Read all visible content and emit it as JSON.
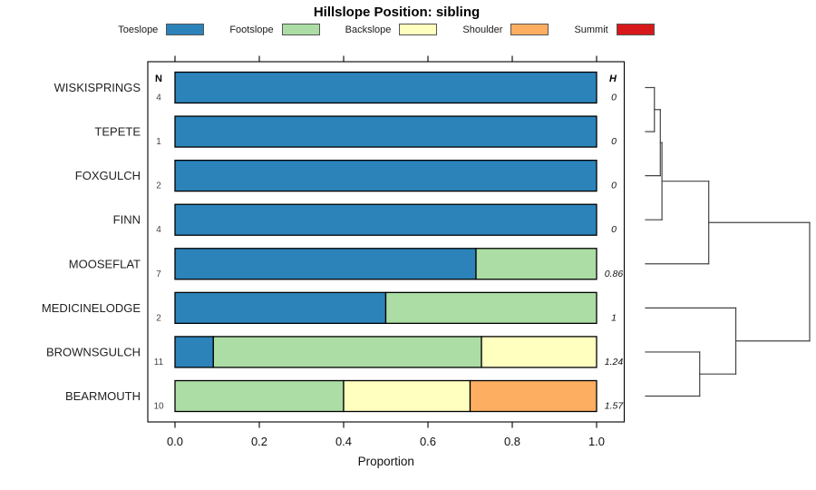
{
  "title": "Hillslope Position: sibling",
  "legend": {
    "items": [
      {
        "label": "Toeslope",
        "color": "#2B83BA"
      },
      {
        "label": "Footslope",
        "color": "#ABDDA4"
      },
      {
        "label": "Backslope",
        "color": "#FFFFBF"
      },
      {
        "label": "Shoulder",
        "color": "#FDAE61"
      },
      {
        "label": "Summit",
        "color": "#D7191C"
      }
    ]
  },
  "chart_data": {
    "type": "bar",
    "orientation": "horizontal",
    "stacked": true,
    "title": "Hillslope Position: sibling",
    "xlabel": "Proportion",
    "xlim": [
      0,
      1
    ],
    "x_ticks": [
      0,
      0.2,
      0.4,
      0.6,
      0.8,
      1
    ],
    "x_tick_labels": [
      "0.0",
      "0.2",
      "0.4",
      "0.6",
      "0.8",
      "1.0"
    ],
    "grid": false,
    "legend_position": "top",
    "columns": {
      "left_header": "N",
      "right_header": "H"
    },
    "categories": [
      "WISKISPRINGS",
      "TEPETE",
      "FOXGULCH",
      "FINN",
      "MOOSEFLAT",
      "MEDICINELODGE",
      "BROWNSGULCH",
      "BEARMOUTH"
    ],
    "n_values": [
      4,
      1,
      2,
      4,
      7,
      2,
      11,
      10
    ],
    "h_values": [
      "0",
      "0",
      "0",
      "0",
      "0.86",
      "1",
      "1.24",
      "1.57"
    ],
    "series": [
      {
        "name": "Toeslope",
        "values": [
          1,
          1,
          1,
          1,
          0.714,
          0.5,
          0.091,
          0
        ]
      },
      {
        "name": "Footslope",
        "values": [
          0,
          0,
          0,
          0,
          0.286,
          0.5,
          0.636,
          0.4
        ]
      },
      {
        "name": "Backslope",
        "values": [
          0,
          0,
          0,
          0,
          0,
          0,
          0.273,
          0.3
        ]
      },
      {
        "name": "Shoulder",
        "values": [
          0,
          0,
          0,
          0,
          0,
          0,
          0,
          0.3
        ]
      },
      {
        "name": "Summit",
        "values": [
          0,
          0,
          0,
          0,
          0,
          0,
          0,
          0
        ]
      }
    ],
    "dendrogram": {
      "side": "right",
      "tree": {
        "h": 1,
        "children": [
          {
            "h": 0.385,
            "children": [
              {
                "h": 0.1,
                "children": [
                  {
                    "h": 0.09,
                    "children": [
                      {
                        "h": 0.054,
                        "children": [
                          {
                            "leaf": "WISKISPRINGS"
                          },
                          {
                            "leaf": "TEPETE"
                          }
                        ]
                      },
                      {
                        "leaf": "FOXGULCH"
                      }
                    ]
                  },
                  {
                    "leaf": "FINN"
                  }
                ]
              },
              {
                "leaf": "MOOSEFLAT"
              }
            ]
          },
          {
            "h": 0.55,
            "children": [
              {
                "leaf": "MEDICINELODGE"
              },
              {
                "h": 0.33,
                "children": [
                  {
                    "leaf": "BROWNSGULCH"
                  },
                  {
                    "leaf": "BEARMOUTH"
                  }
                ]
              }
            ]
          }
        ]
      }
    }
  }
}
